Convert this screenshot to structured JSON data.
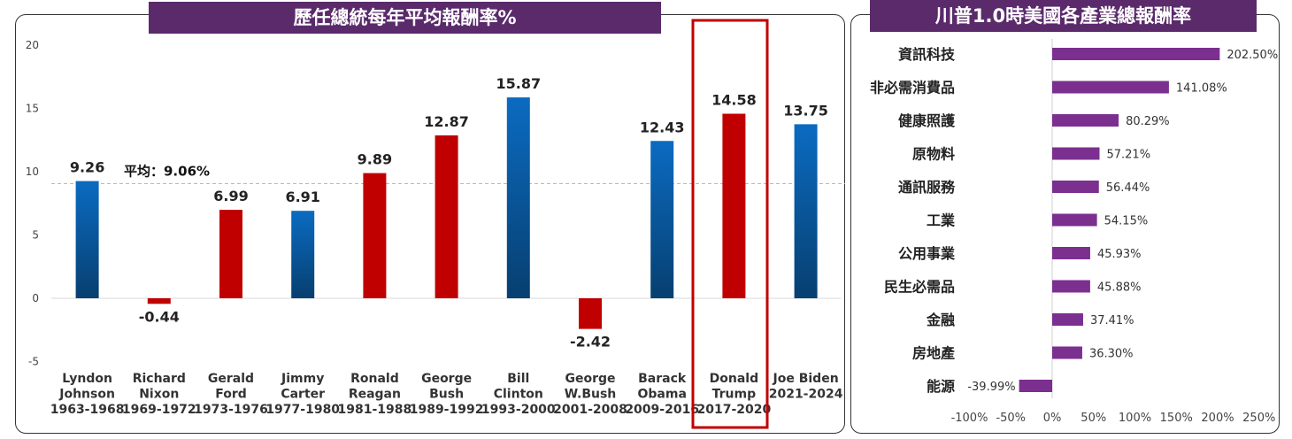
{
  "chart_data": [
    {
      "type": "bar",
      "title": "歷任總統每年平均報酬率%",
      "categories": [
        {
          "name": "Lyndon Johnson",
          "years": "1963-1968"
        },
        {
          "name": "Richard Nixon",
          "years": "1969-1972"
        },
        {
          "name": "Gerald Ford",
          "years": "1973-1976"
        },
        {
          "name": "Jimmy Carter",
          "years": "1977-1980"
        },
        {
          "name": "Ronald Reagan",
          "years": "1981-1988"
        },
        {
          "name": "George Bush",
          "years": "1989-1992"
        },
        {
          "name": "Bill Clinton",
          "years": "1993-2000"
        },
        {
          "name": "George W.Bush",
          "years": "2001-2008"
        },
        {
          "name": "Barack Obama",
          "years": "2009-2016"
        },
        {
          "name": "Donald Trump",
          "years": "2017-2020"
        },
        {
          "name": "Joe Biden",
          "years": "2021-2024"
        }
      ],
      "labels": [
        [
          "Lyndon",
          "Johnson",
          "1963-1968"
        ],
        [
          "Richard",
          "Nixon",
          "1969-1972"
        ],
        [
          "Gerald",
          "Ford",
          "1973-1976"
        ],
        [
          "Jimmy",
          "Carter",
          "1977-1980"
        ],
        [
          "Ronald",
          "Reagan",
          "1981-1988"
        ],
        [
          "George",
          "Bush",
          "1989-1992"
        ],
        [
          "Bill",
          "Clinton",
          "1993-2000"
        ],
        [
          "George",
          "W.Bush",
          "2001-2008"
        ],
        [
          "Barack",
          "Obama",
          "2009-2016"
        ],
        [
          "Donald",
          "Trump",
          "2017-2020"
        ],
        [
          "Joe Biden",
          "2021-2024"
        ]
      ],
      "values": [
        9.26,
        -0.44,
        6.99,
        6.91,
        9.89,
        12.87,
        15.87,
        -2.42,
        12.43,
        14.58,
        13.75
      ],
      "party": [
        "D",
        "R",
        "R",
        "D",
        "R",
        "R",
        "D",
        "R",
        "D",
        "R",
        "D"
      ],
      "party_colors": {
        "D": "#0b5fad",
        "R": "#c00000"
      },
      "ylim": [
        -5,
        20
      ],
      "yticks": [
        -5,
        0,
        5,
        10,
        15,
        20
      ],
      "average": {
        "value": 9.06,
        "label": "平均：9.06%",
        "color": "#f4a582"
      },
      "highlight_index": 9,
      "highlight_color": "#c00000"
    },
    {
      "type": "bar-horizontal",
      "title": "川普1.0時美國各產業總報酬率",
      "categories": [
        "資訊科技",
        "非必需消費品",
        "健康照護",
        "原物料",
        "通訊服務",
        "工業",
        "公用事業",
        "民生必需品",
        "金融",
        "房地產",
        "能源"
      ],
      "values": [
        202.5,
        141.08,
        80.29,
        57.21,
        56.44,
        54.15,
        45.93,
        45.88,
        37.41,
        36.3,
        -39.99
      ],
      "value_labels": [
        "202.50%",
        "141.08%",
        "80.29%",
        "57.21%",
        "56.44%",
        "54.15%",
        "45.93%",
        "45.88%",
        "37.41%",
        "36.30%",
        "-39.99%"
      ],
      "xlim": [
        -100,
        250
      ],
      "xticks": [
        "-100%",
        "-50%",
        "0%",
        "50%",
        "100%",
        "150%",
        "200%",
        "250%"
      ],
      "tick_values": [
        -100,
        -50,
        0,
        50,
        100,
        150,
        200,
        250
      ],
      "bar_color": "#7b2f8f"
    }
  ]
}
